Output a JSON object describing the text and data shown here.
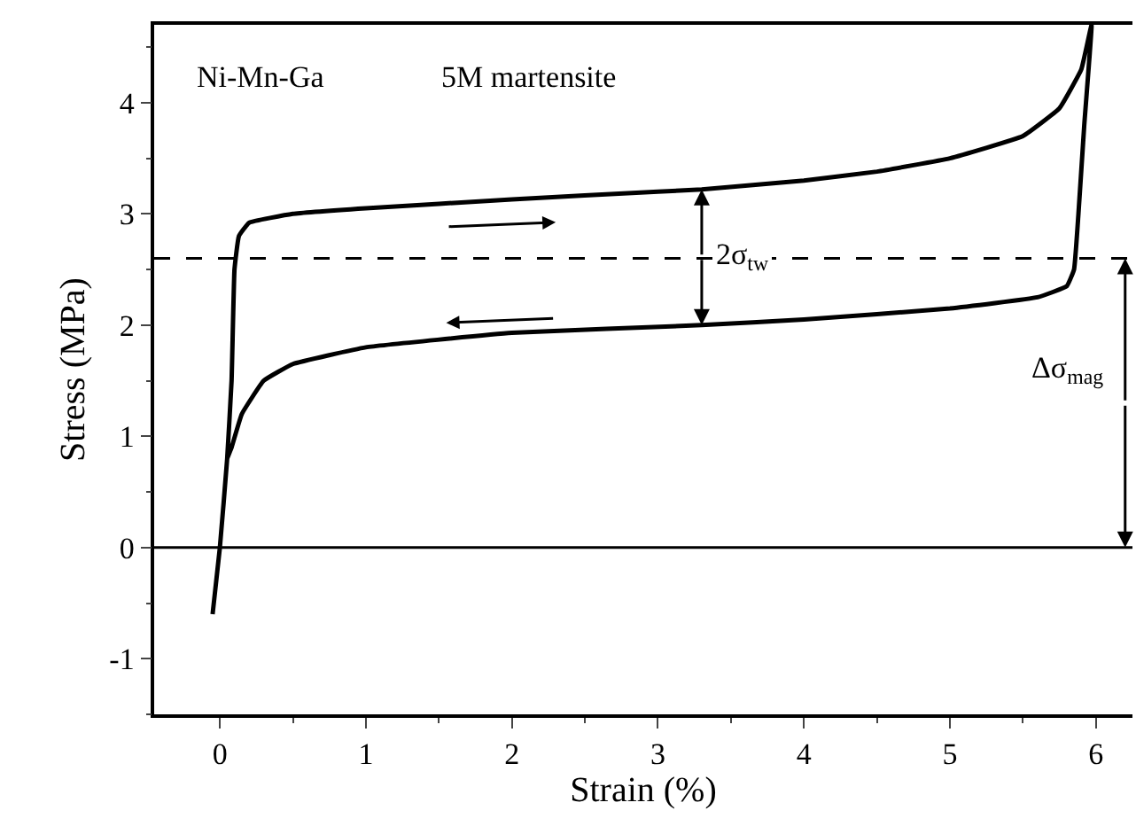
{
  "chart_data": {
    "type": "line",
    "xlabel": "Strain (%)",
    "ylabel": "Stress (MPa)",
    "xlim": [
      -0.45,
      6.25
    ],
    "xticks": [
      0,
      1,
      2,
      3,
      4,
      5,
      6
    ],
    "ylim": [
      -1.5,
      4.7
    ],
    "yticks": [
      -1,
      0,
      1,
      2,
      3,
      4
    ],
    "marker": "none",
    "line_style": "solid",
    "series": [
      {
        "color": "#000000",
        "x": [
          -0.05,
          0,
          0.05,
          0.08,
          0.1,
          0.13,
          0.2,
          0.5,
          1,
          2,
          3,
          3.3,
          4,
          4.5,
          5,
          5.5,
          5.75,
          5.9,
          5.97,
          5.92,
          5.88,
          5.85,
          5.8,
          5.6,
          5,
          4,
          3.3,
          2,
          1,
          0.5,
          0.3,
          0.15,
          0.08,
          0.05
        ],
        "values": [
          -0.6,
          0,
          0.8,
          1.5,
          2.5,
          2.8,
          2.92,
          3.0,
          3.05,
          3.13,
          3.2,
          3.22,
          3.3,
          3.38,
          3.5,
          3.7,
          3.95,
          4.3,
          4.7,
          3.8,
          3.0,
          2.5,
          2.35,
          2.25,
          2.15,
          2.05,
          2.0,
          1.93,
          1.8,
          1.65,
          1.5,
          1.2,
          0.9,
          0.8
        ]
      }
    ],
    "ref_lines": [
      {
        "axis": "y",
        "value": 2.6,
        "line_style": "dashed",
        "color": "#000000"
      },
      {
        "axis": "y",
        "value": 0,
        "line_style": "solid",
        "color": "#000000"
      }
    ],
    "annotations": [
      "Ni-Mn-Ga",
      "5M martensite",
      {
        "text": "2σ$_{tw}$",
        "x": 3.3,
        "y": 2.0
      },
      {
        "text": "Δσ$_{mag}$",
        "x": 6.2,
        "y": 0
      }
    ]
  }
}
